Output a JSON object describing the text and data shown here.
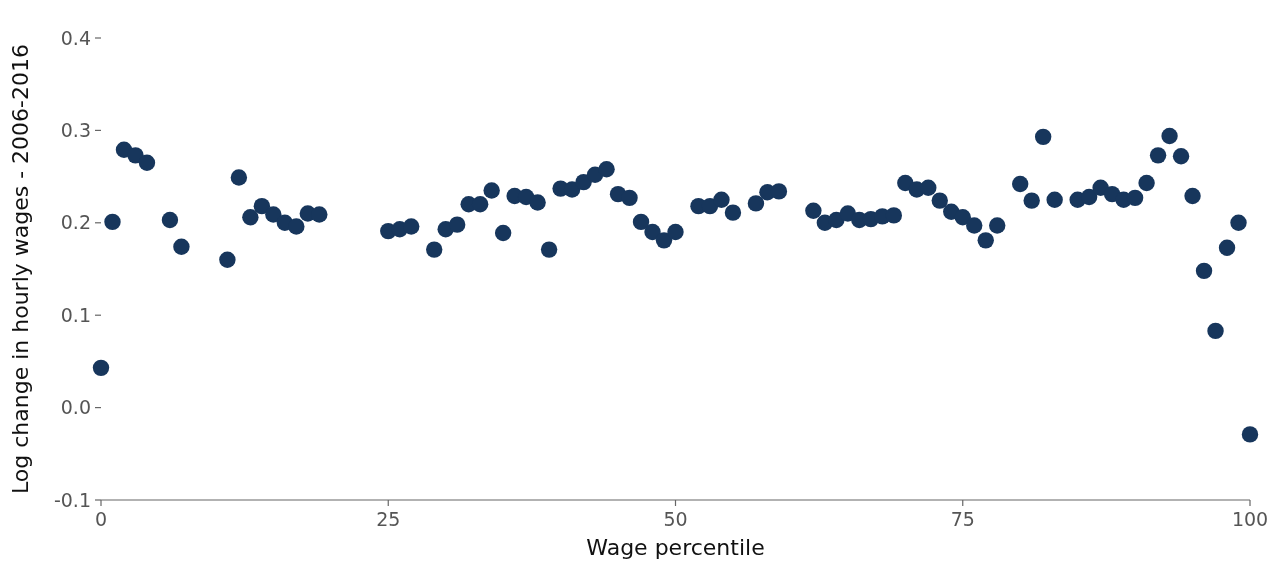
{
  "chart_data": {
    "type": "scatter",
    "xlabel": "Wage percentile",
    "ylabel": "Log change in hourly wages - 2006-2016",
    "x": [
      0,
      1,
      2,
      3,
      4,
      6,
      7,
      11,
      12,
      13,
      14,
      15,
      16,
      17,
      18,
      19,
      25,
      26,
      27,
      29,
      30,
      31,
      32,
      33,
      34,
      35,
      36,
      37,
      38,
      39,
      40,
      41,
      42,
      43,
      44,
      45,
      46,
      47,
      48,
      49,
      50,
      52,
      53,
      54,
      55,
      57,
      58,
      59,
      62,
      63,
      64,
      65,
      66,
      67,
      68,
      69,
      70,
      71,
      72,
      73,
      74,
      75,
      76,
      77,
      78,
      80,
      81,
      82,
      83,
      85,
      86,
      87,
      88,
      89,
      90,
      91,
      92,
      93,
      94,
      95,
      96,
      97,
      98,
      99,
      100
    ],
    "series": [
      {
        "color": "#17365c",
        "values": [
          0.043,
          0.201,
          0.279,
          0.273,
          0.265,
          0.203,
          0.174,
          0.16,
          0.249,
          0.206,
          0.218,
          0.209,
          0.2,
          0.196,
          0.21,
          0.209,
          0.191,
          0.193,
          0.196,
          0.171,
          0.193,
          0.198,
          0.22,
          0.22,
          0.235,
          0.189,
          0.229,
          0.228,
          0.222,
          0.171,
          0.237,
          0.236,
          0.244,
          0.252,
          0.258,
          0.231,
          0.227,
          0.201,
          0.19,
          0.181,
          0.19,
          0.218,
          0.218,
          0.225,
          0.211,
          0.221,
          0.233,
          0.234,
          0.213,
          0.2,
          0.203,
          0.21,
          0.203,
          0.204,
          0.207,
          0.208,
          0.243,
          0.236,
          0.238,
          0.224,
          0.212,
          0.206,
          0.197,
          0.181,
          0.197,
          0.242,
          0.224,
          0.293,
          0.225,
          0.225,
          0.228,
          0.238,
          0.231,
          0.225,
          0.227,
          0.243,
          0.273,
          0.294,
          0.272,
          0.229,
          0.148,
          0.083,
          0.173,
          0.2,
          -0.029
        ]
      }
    ],
    "xlim": [
      0,
      100
    ],
    "xticks": [
      0,
      25,
      50,
      75,
      100
    ],
    "ylim": [
      -0.1,
      0.4
    ],
    "yticks": [
      {
        "value": -0.1,
        "label": "-0.1"
      },
      {
        "value": 0,
        "label": "0.0"
      },
      {
        "value": 0.1,
        "label": "0.1"
      },
      {
        "value": 0.2,
        "label": "0.2"
      },
      {
        "value": 0.3,
        "label": "0.3"
      },
      {
        "value": 0.4,
        "label": "0.4"
      }
    ],
    "marker": "circle",
    "grid": false
  }
}
